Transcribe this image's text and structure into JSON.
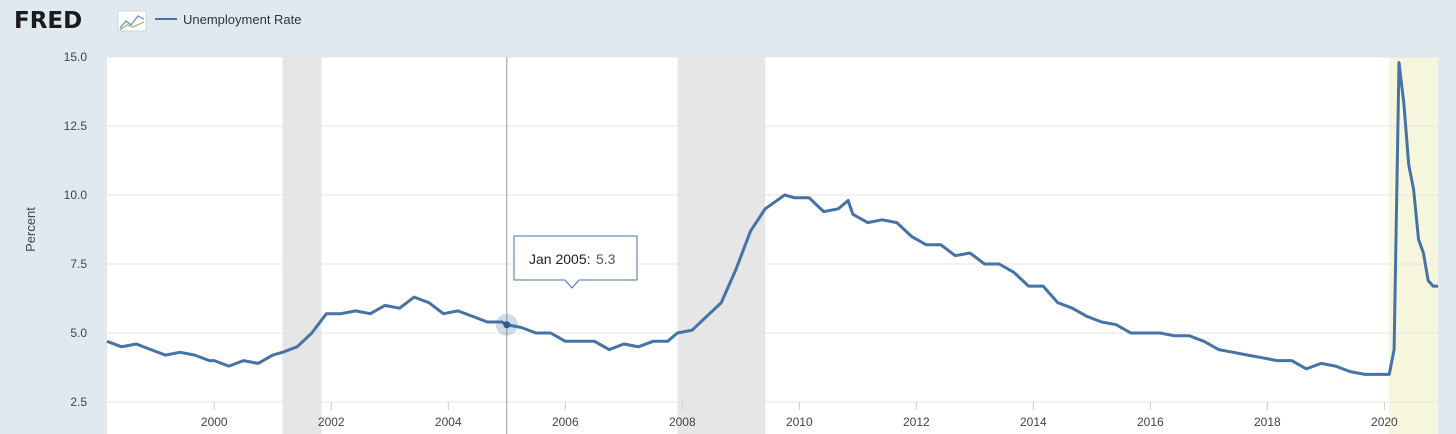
{
  "header": {
    "logo_text": "FRED",
    "legend_label": "Unemployment Rate"
  },
  "tooltip": {
    "label": "Jan 2005:",
    "value": "5.3"
  },
  "colors": {
    "background": "#e1e9f0",
    "plot_bg": "#ffffff",
    "line": "#4572a7",
    "recession": "#e6e6e6",
    "covid_band": "#f6f6dc"
  },
  "chart_data": {
    "type": "line",
    "title": "",
    "xlabel": "",
    "ylabel": "Percent",
    "ylim": [
      2.5,
      15.0
    ],
    "yticks": [
      "2.5",
      "5.0",
      "7.5",
      "10.0",
      "12.5",
      "15.0"
    ],
    "xticks": [
      "2000",
      "2002",
      "2004",
      "2006",
      "2008",
      "2010",
      "2012",
      "2014",
      "2016",
      "2018",
      "2020"
    ],
    "x_range": [
      "1998-03",
      "2020-12"
    ],
    "grid": true,
    "legend": "top-left",
    "recessions": [
      [
        "2001-03",
        "2001-11"
      ],
      [
        "2007-12",
        "2009-06"
      ],
      [
        "2020-02",
        "2020-12"
      ]
    ],
    "series": [
      {
        "name": "Unemployment Rate",
        "points": [
          [
            "1998-03",
            4.7
          ],
          [
            "1998-06",
            4.5
          ],
          [
            "1998-09",
            4.6
          ],
          [
            "1998-12",
            4.4
          ],
          [
            "1999-03",
            4.2
          ],
          [
            "1999-06",
            4.3
          ],
          [
            "1999-09",
            4.2
          ],
          [
            "1999-12",
            4.0
          ],
          [
            "2000-01",
            4.0
          ],
          [
            "2000-04",
            3.8
          ],
          [
            "2000-07",
            4.0
          ],
          [
            "2000-10",
            3.9
          ],
          [
            "2001-01",
            4.2
          ],
          [
            "2001-03",
            4.3
          ],
          [
            "2001-06",
            4.5
          ],
          [
            "2001-09",
            5.0
          ],
          [
            "2001-12",
            5.7
          ],
          [
            "2002-03",
            5.7
          ],
          [
            "2002-06",
            5.8
          ],
          [
            "2002-09",
            5.7
          ],
          [
            "2002-12",
            6.0
          ],
          [
            "2003-03",
            5.9
          ],
          [
            "2003-06",
            6.3
          ],
          [
            "2003-09",
            6.1
          ],
          [
            "2003-12",
            5.7
          ],
          [
            "2004-03",
            5.8
          ],
          [
            "2004-06",
            5.6
          ],
          [
            "2004-09",
            5.4
          ],
          [
            "2004-12",
            5.4
          ],
          [
            "2005-01",
            5.3
          ],
          [
            "2005-04",
            5.2
          ],
          [
            "2005-07",
            5.0
          ],
          [
            "2005-10",
            5.0
          ],
          [
            "2006-01",
            4.7
          ],
          [
            "2006-04",
            4.7
          ],
          [
            "2006-07",
            4.7
          ],
          [
            "2006-10",
            4.4
          ],
          [
            "2007-01",
            4.6
          ],
          [
            "2007-04",
            4.5
          ],
          [
            "2007-07",
            4.7
          ],
          [
            "2007-10",
            4.7
          ],
          [
            "2007-12",
            5.0
          ],
          [
            "2008-03",
            5.1
          ],
          [
            "2008-06",
            5.6
          ],
          [
            "2008-09",
            6.1
          ],
          [
            "2008-12",
            7.3
          ],
          [
            "2009-03",
            8.7
          ],
          [
            "2009-06",
            9.5
          ],
          [
            "2009-10",
            10.0
          ],
          [
            "2009-12",
            9.9
          ],
          [
            "2010-03",
            9.9
          ],
          [
            "2010-06",
            9.4
          ],
          [
            "2010-09",
            9.5
          ],
          [
            "2010-11",
            9.8
          ],
          [
            "2010-12",
            9.3
          ],
          [
            "2011-03",
            9.0
          ],
          [
            "2011-06",
            9.1
          ],
          [
            "2011-09",
            9.0
          ],
          [
            "2011-12",
            8.5
          ],
          [
            "2012-03",
            8.2
          ],
          [
            "2012-06",
            8.2
          ],
          [
            "2012-09",
            7.8
          ],
          [
            "2012-12",
            7.9
          ],
          [
            "2013-03",
            7.5
          ],
          [
            "2013-06",
            7.5
          ],
          [
            "2013-09",
            7.2
          ],
          [
            "2013-12",
            6.7
          ],
          [
            "2014-03",
            6.7
          ],
          [
            "2014-06",
            6.1
          ],
          [
            "2014-09",
            5.9
          ],
          [
            "2014-12",
            5.6
          ],
          [
            "2015-03",
            5.4
          ],
          [
            "2015-06",
            5.3
          ],
          [
            "2015-09",
            5.0
          ],
          [
            "2015-12",
            5.0
          ],
          [
            "2016-03",
            5.0
          ],
          [
            "2016-06",
            4.9
          ],
          [
            "2016-09",
            4.9
          ],
          [
            "2016-12",
            4.7
          ],
          [
            "2017-03",
            4.4
          ],
          [
            "2017-06",
            4.3
          ],
          [
            "2017-09",
            4.2
          ],
          [
            "2017-12",
            4.1
          ],
          [
            "2018-03",
            4.0
          ],
          [
            "2018-06",
            4.0
          ],
          [
            "2018-09",
            3.7
          ],
          [
            "2018-12",
            3.9
          ],
          [
            "2019-03",
            3.8
          ],
          [
            "2019-06",
            3.6
          ],
          [
            "2019-09",
            3.5
          ],
          [
            "2019-12",
            3.5
          ],
          [
            "2020-02",
            3.5
          ],
          [
            "2020-03",
            4.4
          ],
          [
            "2020-04",
            14.8
          ],
          [
            "2020-05",
            13.3
          ],
          [
            "2020-06",
            11.1
          ],
          [
            "2020-07",
            10.2
          ],
          [
            "2020-08",
            8.4
          ],
          [
            "2020-09",
            7.9
          ],
          [
            "2020-10",
            6.9
          ],
          [
            "2020-11",
            6.7
          ],
          [
            "2020-12",
            6.7
          ]
        ]
      }
    ],
    "crosshair_date": "2005-01",
    "highlight_point": [
      "2005-01",
      5.3
    ]
  }
}
